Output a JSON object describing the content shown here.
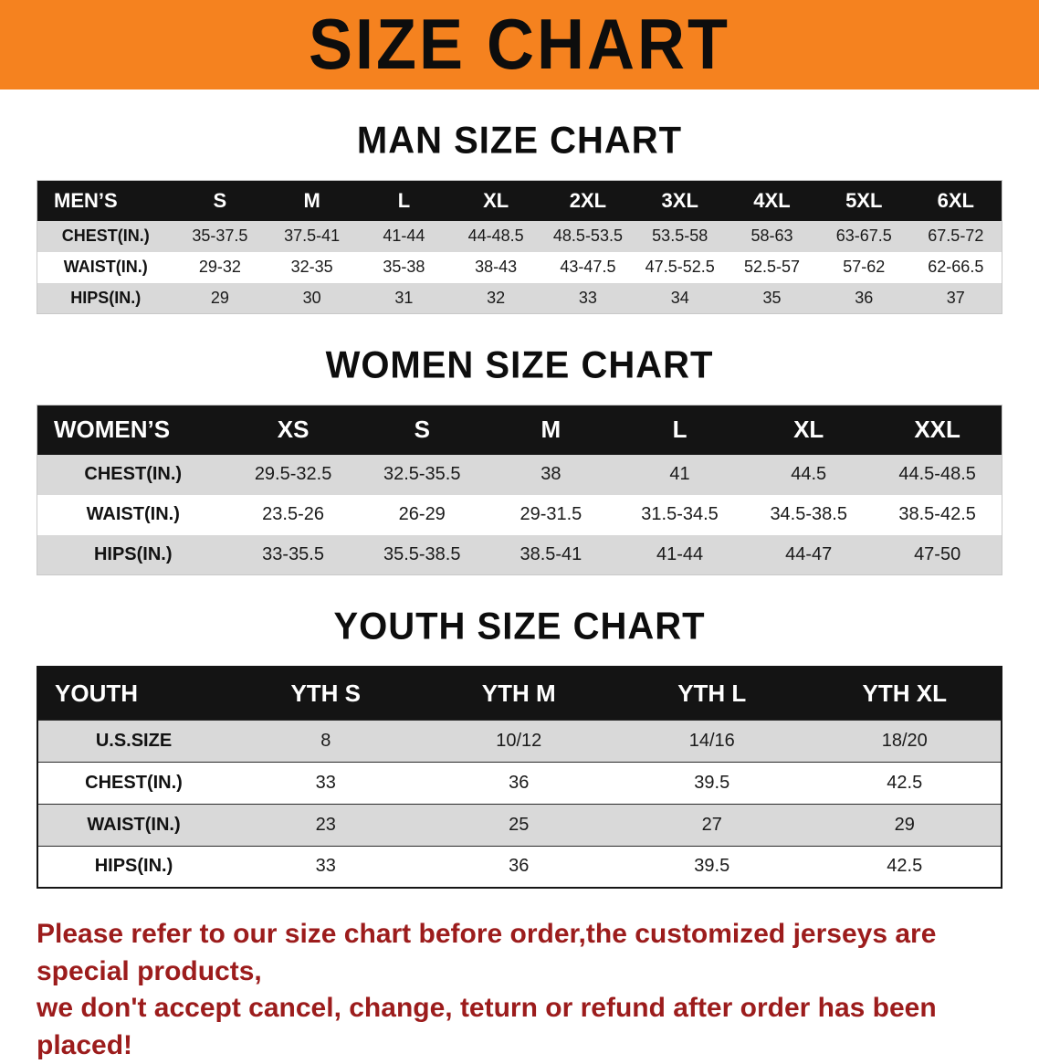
{
  "banner": {
    "title": "SIZE CHART"
  },
  "colors": {
    "banner_bg": "#f5821f",
    "table_header_bg": "#141414",
    "row_stripe": "#d9d9d9",
    "footer_text": "#9c1c1c"
  },
  "sections": [
    {
      "title": "MAN SIZE CHART",
      "table": {
        "header": [
          "MEN’S",
          "S",
          "M",
          "L",
          "XL",
          "2XL",
          "3XL",
          "4XL",
          "5XL",
          "6XL"
        ],
        "rows": [
          [
            "CHEST(IN.)",
            "35-37.5",
            "37.5-41",
            "41-44",
            "44-48.5",
            "48.5-53.5",
            "53.5-58",
            "58-63",
            "63-67.5",
            "67.5-72"
          ],
          [
            "WAIST(IN.)",
            "29-32",
            "32-35",
            "35-38",
            "38-43",
            "43-47.5",
            "47.5-52.5",
            "52.5-57",
            "57-62",
            "62-66.5"
          ],
          [
            "HIPS(IN.)",
            "29",
            "30",
            "31",
            "32",
            "33",
            "34",
            "35",
            "36",
            "37"
          ]
        ]
      }
    },
    {
      "title": "WOMEN SIZE CHART",
      "table": {
        "header": [
          "WOMEN’S",
          "XS",
          "S",
          "M",
          "L",
          "XL",
          "XXL"
        ],
        "rows": [
          [
            "CHEST(IN.)",
            "29.5-32.5",
            "32.5-35.5",
            "38",
            "41",
            "44.5",
            "44.5-48.5"
          ],
          [
            "WAIST(IN.)",
            "23.5-26",
            "26-29",
            "29-31.5",
            "31.5-34.5",
            "34.5-38.5",
            "38.5-42.5"
          ],
          [
            "HIPS(IN.)",
            "33-35.5",
            "35.5-38.5",
            "38.5-41",
            "41-44",
            "44-47",
            "47-50"
          ]
        ]
      }
    },
    {
      "title": "YOUTH SIZE CHART",
      "table": {
        "header": [
          "YOUTH",
          "YTH S",
          "YTH M",
          "YTH L",
          "YTH XL"
        ],
        "rows": [
          [
            "U.S.SIZE",
            "8",
            "10/12",
            "14/16",
            "18/20"
          ],
          [
            "CHEST(IN.)",
            "33",
            "36",
            "39.5",
            "42.5"
          ],
          [
            "WAIST(IN.)",
            "23",
            "25",
            "27",
            "29"
          ],
          [
            "HIPS(IN.)",
            "33",
            "36",
            "39.5",
            "42.5"
          ]
        ]
      }
    }
  ],
  "footer": {
    "lines": [
      "Please refer to our size chart before order,the customized jerseys are special products,",
      "we don't accept cancel, change, teturn or refund after order has been placed!"
    ]
  }
}
